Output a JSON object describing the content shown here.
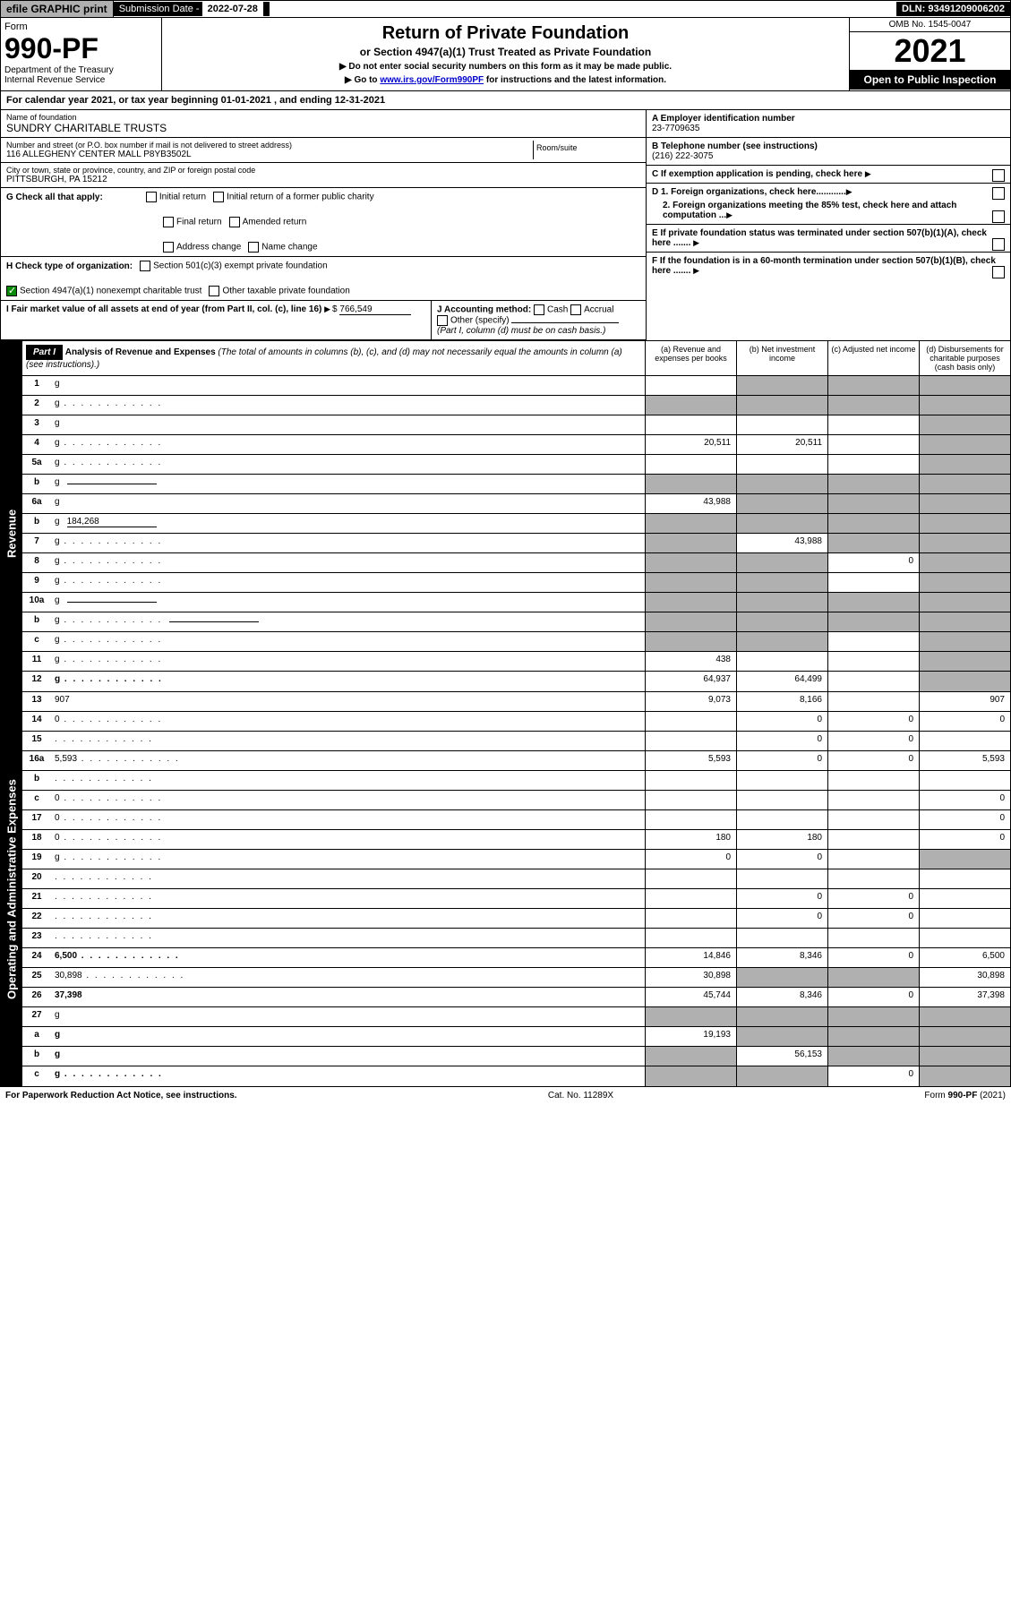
{
  "topbar": {
    "efile": "efile GRAPHIC print",
    "sub_label": "Submission Date - ",
    "sub_date": "2022-07-28",
    "dln": "DLN: 93491209006202"
  },
  "header": {
    "form_word": "Form",
    "form_no": "990-PF",
    "dept": "Department of the Treasury\nInternal Revenue Service",
    "title": "Return of Private Foundation",
    "subtitle": "or Section 4947(a)(1) Trust Treated as Private Foundation",
    "note1": "▶ Do not enter social security numbers on this form as it may be made public.",
    "note2": "▶ Go to ",
    "link": "www.irs.gov/Form990PF",
    "note2b": " for instructions and the latest information.",
    "omb": "OMB No. 1545-0047",
    "year": "2021",
    "open": "Open to Public Inspection"
  },
  "cal_year": "For calendar year 2021, or tax year beginning 01-01-2021                      , and ending 12-31-2021",
  "foundation": {
    "name_label": "Name of foundation",
    "name": "SUNDRY CHARITABLE TRUSTS",
    "addr_label": "Number and street (or P.O. box number if mail is not delivered to street address)",
    "addr": "116 ALLEGHENY CENTER MALL P8YB3502L",
    "room_label": "Room/suite",
    "city_label": "City or town, state or province, country, and ZIP or foreign postal code",
    "city": "PITTSBURGH, PA  15212",
    "a_label": "A Employer identification number",
    "ein": "23-7709635",
    "b_label": "B Telephone number (see instructions)",
    "phone": "(216) 222-3075",
    "c_label": "C If exemption application is pending, check here",
    "d1": "D 1. Foreign organizations, check here............",
    "d2": "2. Foreign organizations meeting the 85% test, check here and attach computation ...",
    "e_label": "E  If private foundation status was terminated under section 507(b)(1)(A), check here .......",
    "f_label": "F  If the foundation is in a 60-month termination under section 507(b)(1)(B), check here ......."
  },
  "g": {
    "label": "G Check all that apply:",
    "opts": [
      "Initial return",
      "Initial return of a former public charity",
      "Final return",
      "Amended return",
      "Address change",
      "Name change"
    ]
  },
  "h": {
    "label": "H Check type of organization:",
    "opt1": "Section 501(c)(3) exempt private foundation",
    "opt2": "Section 4947(a)(1) nonexempt charitable trust",
    "opt3": "Other taxable private foundation"
  },
  "i": {
    "label": "I Fair market value of all assets at end of year (from Part II, col. (c), line 16)",
    "val": "766,549"
  },
  "j": {
    "label": "J Accounting method:",
    "cash": "Cash",
    "accrual": "Accrual",
    "other": "Other (specify)",
    "note": "(Part I, column (d) must be on cash basis.)"
  },
  "part1": {
    "label": "Part I",
    "title": "Analysis of Revenue and Expenses",
    "note": " (The total of amounts in columns (b), (c), and (d) may not necessarily equal the amounts in column (a) (see instructions).)",
    "cols": {
      "a": "(a)  Revenue and expenses per books",
      "b": "(b)  Net investment income",
      "c": "(c)  Adjusted net income",
      "d": "(d)  Disbursements for charitable purposes (cash basis only)"
    }
  },
  "sections": {
    "revenue": "Revenue",
    "operating": "Operating and Administrative Expenses"
  },
  "rows": [
    {
      "n": "1",
      "d": "g",
      "a": "",
      "b": "g",
      "c": "g"
    },
    {
      "n": "2",
      "d": "g",
      "dots": true,
      "a": "g",
      "b": "g",
      "c": "g",
      "bold_not": true
    },
    {
      "n": "3",
      "d": "g",
      "a": "",
      "b": "",
      "c": ""
    },
    {
      "n": "4",
      "d": "g",
      "dots": true,
      "a": "20,511",
      "b": "20,511",
      "c": ""
    },
    {
      "n": "5a",
      "d": "g",
      "dots": true,
      "a": "",
      "b": "",
      "c": ""
    },
    {
      "n": "b",
      "d": "g",
      "inline": true,
      "a": "g",
      "b": "g",
      "c": "g"
    },
    {
      "n": "6a",
      "d": "g",
      "a": "43,988",
      "b": "g",
      "c": "g"
    },
    {
      "n": "b",
      "d": "g",
      "inline": true,
      "inline_val": "184,268",
      "a": "g",
      "b": "g",
      "c": "g"
    },
    {
      "n": "7",
      "d": "g",
      "dots": true,
      "a": "g",
      "b": "43,988",
      "c": "g"
    },
    {
      "n": "8",
      "d": "g",
      "dots": true,
      "a": "g",
      "b": "g",
      "c": "0"
    },
    {
      "n": "9",
      "d": "g",
      "dots": true,
      "a": "g",
      "b": "g",
      "c": ""
    },
    {
      "n": "10a",
      "d": "g",
      "inline": true,
      "a": "g",
      "b": "g",
      "c": "g"
    },
    {
      "n": "b",
      "d": "g",
      "dots": true,
      "inline": true,
      "a": "g",
      "b": "g",
      "c": "g"
    },
    {
      "n": "c",
      "d": "g",
      "dots": true,
      "a": "g",
      "b": "g",
      "c": ""
    },
    {
      "n": "11",
      "d": "g",
      "dots": true,
      "a": "438",
      "b": "",
      "c": ""
    },
    {
      "n": "12",
      "d": "g",
      "dots": true,
      "bold": true,
      "a": "64,937",
      "b": "64,499",
      "c": ""
    },
    {
      "n": "13",
      "d": "907",
      "a": "9,073",
      "b": "8,166",
      "c": ""
    },
    {
      "n": "14",
      "d": "0",
      "dots": true,
      "a": "",
      "b": "0",
      "c": "0"
    },
    {
      "n": "15",
      "d": "",
      "dots": true,
      "a": "",
      "b": "0",
      "c": "0"
    },
    {
      "n": "16a",
      "d": "5,593",
      "dots": true,
      "a": "5,593",
      "b": "0",
      "c": "0"
    },
    {
      "n": "b",
      "d": "",
      "dots": true,
      "a": "",
      "b": "",
      "c": ""
    },
    {
      "n": "c",
      "d": "0",
      "dots": true,
      "a": "",
      "b": "",
      "c": ""
    },
    {
      "n": "17",
      "d": "0",
      "dots": true,
      "a": "",
      "b": "",
      "c": ""
    },
    {
      "n": "18",
      "d": "0",
      "dots": true,
      "a": "180",
      "b": "180",
      "c": ""
    },
    {
      "n": "19",
      "d": "g",
      "dots": true,
      "a": "0",
      "b": "0",
      "c": ""
    },
    {
      "n": "20",
      "d": "",
      "dots": true,
      "a": "",
      "b": "",
      "c": ""
    },
    {
      "n": "21",
      "d": "",
      "dots": true,
      "a": "",
      "b": "0",
      "c": "0"
    },
    {
      "n": "22",
      "d": "",
      "dots": true,
      "a": "",
      "b": "0",
      "c": "0"
    },
    {
      "n": "23",
      "d": "",
      "dots": true,
      "a": "",
      "b": "",
      "c": ""
    },
    {
      "n": "24",
      "d": "6,500",
      "dots": true,
      "bold": true,
      "a": "14,846",
      "b": "8,346",
      "c": "0"
    },
    {
      "n": "25",
      "d": "30,898",
      "dots": true,
      "a": "30,898",
      "b": "g",
      "c": "g"
    },
    {
      "n": "26",
      "d": "37,398",
      "bold": true,
      "a": "45,744",
      "b": "8,346",
      "c": "0"
    },
    {
      "n": "27",
      "d": "g",
      "a": "g",
      "b": "g",
      "c": "g"
    },
    {
      "n": "a",
      "d": "g",
      "bold": true,
      "a": "19,193",
      "b": "g",
      "c": "g"
    },
    {
      "n": "b",
      "d": "g",
      "bold": true,
      "a": "g",
      "b": "56,153",
      "c": "g"
    },
    {
      "n": "c",
      "d": "g",
      "dots": true,
      "bold": true,
      "a": "g",
      "b": "g",
      "c": "0"
    }
  ],
  "footer": {
    "left": "For Paperwork Reduction Act Notice, see instructions.",
    "mid": "Cat. No. 11289X",
    "right": "Form 990-PF (2021)"
  }
}
